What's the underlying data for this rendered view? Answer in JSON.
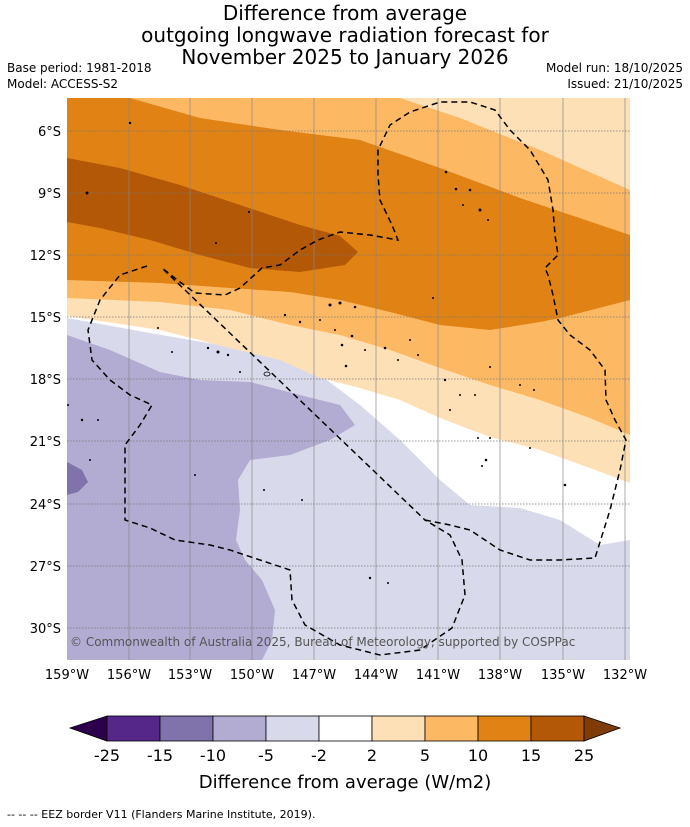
{
  "title": {
    "line1": "Difference from average",
    "line2": "outgoing longwave radiation forecast for",
    "line3": "November 2025 to January 2026"
  },
  "meta": {
    "base_period": "Base period: 1981-2018",
    "model": "Model: ACCESS-S2",
    "model_run": "Model run: 18/10/2025",
    "issued": "Issued: 21/10/2025"
  },
  "map": {
    "lat_labels": [
      "6°S",
      "9°S",
      "12°S",
      "15°S",
      "18°S",
      "21°S",
      "24°S",
      "27°S",
      "30°S"
    ],
    "lon_labels": [
      "159°W",
      "156°W",
      "153°W",
      "150°W",
      "147°W",
      "144°W",
      "141°W",
      "138°W",
      "135°W",
      "132°W"
    ],
    "copyright": "© Commonwealth of Australia 2025, Bureau of Meteorology, supported by COSPPac"
  },
  "colorbar": {
    "ticks": [
      "-25",
      "-15",
      "-10",
      "-5",
      "-2",
      "2",
      "5",
      "10",
      "15",
      "25"
    ],
    "colors": [
      "#2d004b",
      "#542788",
      "#8073ac",
      "#b2abd2",
      "#d8daeb",
      "#ffffff",
      "#fee0b6",
      "#fdb863",
      "#e08214",
      "#b35806",
      "#7f3b08"
    ],
    "title": "Difference from average (W/m2)"
  },
  "footnote": "--  --  -- EEZ border V11 (Flanders Marine Institute, 2019).",
  "colors": {
    "orange_light": "#fee0b6",
    "orange_mid": "#fdb863",
    "orange": "#e08214",
    "orange_dark": "#b35806",
    "purple_light": "#d8daeb",
    "purple_mid": "#b2abd2",
    "purple": "#8073ac"
  }
}
